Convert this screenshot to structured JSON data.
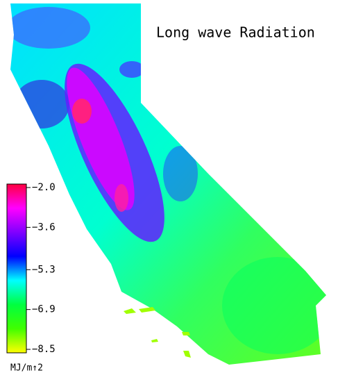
{
  "title": "Long wave Radiation",
  "colorbar": {
    "range": [
      -8.5,
      -2.0
    ],
    "ticks": [
      {
        "value": -2.0,
        "label": "−2.0"
      },
      {
        "value": -3.6,
        "label": "−3.6"
      },
      {
        "value": -5.3,
        "label": "−5.3"
      },
      {
        "value": -6.9,
        "label": "−6.9"
      },
      {
        "value": -8.5,
        "label": "−8.5"
      }
    ],
    "colors": [
      "#ff0040",
      "#ff00ff",
      "#8000ff",
      "#0000ff",
      "#00ffff",
      "#00ff40",
      "#40ff00",
      "#ffff00"
    ],
    "unit_label": "MJ/m↑2"
  }
}
